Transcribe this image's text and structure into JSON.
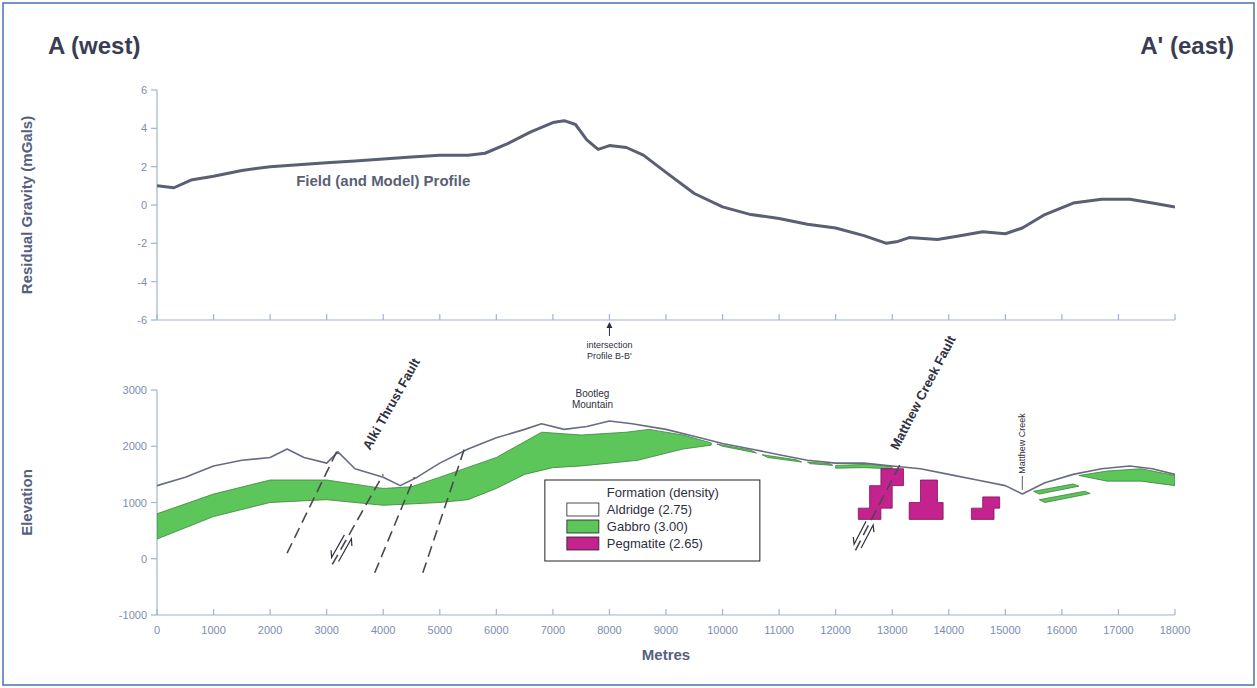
{
  "header": {
    "left": "A (west)",
    "right": "A' (east)"
  },
  "chart_data": [
    {
      "type": "line",
      "y_label": "Residual Gravity (mGals)",
      "xlim": [
        0,
        18000
      ],
      "ylim": [
        -6,
        6
      ],
      "xticks": [
        0,
        1000,
        2000,
        3000,
        4000,
        5000,
        6000,
        7000,
        8000,
        9000,
        10000,
        11000,
        12000,
        13000,
        14000,
        15000,
        16000,
        17000,
        18000
      ],
      "yticks": [
        -6,
        -4,
        -2,
        0,
        2,
        4,
        6
      ],
      "tick_labels": "y",
      "x": [
        0,
        300,
        600,
        1000,
        1500,
        2000,
        2500,
        3000,
        3500,
        4000,
        4500,
        5000,
        5500,
        5800,
        6200,
        6600,
        7000,
        7200,
        7400,
        7600,
        7800,
        8000,
        8300,
        8600,
        9000,
        9500,
        10000,
        10500,
        11000,
        11500,
        12000,
        12500,
        12900,
        13100,
        13300,
        13800,
        14200,
        14600,
        15000,
        15300,
        15700,
        16200,
        16700,
        17200,
        17600,
        18000
      ],
      "series": [
        {
          "name": "Field (and Model) Profile",
          "color": "#5b5f74",
          "values": [
            1.0,
            0.9,
            1.3,
            1.5,
            1.8,
            2.0,
            2.1,
            2.2,
            2.3,
            2.4,
            2.5,
            2.6,
            2.6,
            2.7,
            3.2,
            3.8,
            4.3,
            4.4,
            4.2,
            3.4,
            2.9,
            3.1,
            3.0,
            2.6,
            1.7,
            0.6,
            -0.1,
            -0.5,
            -0.7,
            -1.0,
            -1.2,
            -1.6,
            -2.0,
            -1.9,
            -1.7,
            -1.8,
            -1.6,
            -1.4,
            -1.5,
            -1.2,
            -0.5,
            0.1,
            0.3,
            0.3,
            0.1,
            -0.1
          ],
          "label_x": 4000,
          "label_y": 1.0
        }
      ],
      "annotations": [
        {
          "lines": [
            "intersection",
            "Profile B-B'"
          ],
          "x": 8000
        }
      ]
    },
    {
      "type": "cross_section",
      "x_label": "Metres",
      "y_label": "Elevation",
      "xlim": [
        0,
        18000
      ],
      "ylim": [
        -1000,
        3000
      ],
      "xticks": [
        0,
        1000,
        2000,
        3000,
        4000,
        5000,
        6000,
        7000,
        8000,
        9000,
        10000,
        11000,
        12000,
        13000,
        14000,
        15000,
        16000,
        17000,
        18000
      ],
      "yticks": [
        -1000,
        0,
        1000,
        2000,
        3000
      ],
      "topography": {
        "color": "#676c82",
        "x": [
          0,
          500,
          1000,
          1500,
          2000,
          2300,
          2600,
          3000,
          3200,
          3500,
          4000,
          4300,
          4600,
          5000,
          5500,
          6000,
          6500,
          6800,
          7200,
          7600,
          8000,
          8400,
          9000,
          9600,
          10000,
          10500,
          11000,
          11500,
          12000,
          12500,
          13000,
          13500,
          14000,
          14500,
          15000,
          15300,
          15700,
          16200,
          16700,
          17200,
          17600,
          18000
        ],
        "y": [
          1300,
          1450,
          1650,
          1750,
          1800,
          1950,
          1800,
          1700,
          1900,
          1600,
          1450,
          1300,
          1450,
          1700,
          1950,
          2150,
          2300,
          2400,
          2300,
          2350,
          2450,
          2400,
          2300,
          2150,
          2050,
          1950,
          1850,
          1750,
          1700,
          1700,
          1650,
          1600,
          1500,
          1400,
          1300,
          1150,
          1350,
          1500,
          1600,
          1650,
          1600,
          1500
        ]
      },
      "legend_title": "Formation (density)",
      "legend": "lower center",
      "formations": [
        {
          "label": "Aldridge (2.75)",
          "color": "#ffffff",
          "bodies": []
        },
        {
          "label": "Gabbro (3.00)",
          "color": "#5dc65b",
          "bodies": [
            {
              "x": [
                0,
                1000,
                2000,
                3000,
                4000,
                4500,
                5000,
                6000,
                6800,
                7500,
                8300,
                8700,
                9300,
                9800,
                9800,
                9300,
                8500,
                8000,
                7500,
                7000,
                6500,
                6000,
                5500,
                5000,
                4000,
                3000,
                2000,
                1000,
                0
              ],
              "y": [
                800,
                1150,
                1400,
                1400,
                1250,
                1280,
                1450,
                1800,
                2250,
                2200,
                2250,
                2300,
                2200,
                2060,
                2020,
                1950,
                1750,
                1700,
                1650,
                1620,
                1500,
                1250,
                1050,
                1000,
                950,
                1050,
                1000,
                750,
                350
              ]
            },
            {
              "x": [
                9900,
                10500,
                10600,
                10000
              ],
              "y": [
                2040,
                1930,
                1880,
                2000
              ]
            },
            {
              "x": [
                10700,
                11300,
                11400,
                10800
              ],
              "y": [
                1850,
                1760,
                1720,
                1800
              ]
            },
            {
              "x": [
                11500,
                11900,
                11950,
                11550
              ],
              "y": [
                1720,
                1690,
                1660,
                1690
              ]
            },
            {
              "x": [
                12000,
                12600,
                13000,
                13000,
                12500,
                12000
              ],
              "y": [
                1660,
                1680,
                1640,
                1600,
                1620,
                1610
              ]
            },
            {
              "x": [
                16300,
                16800,
                17400,
                18000,
                18000,
                17400,
                16800
              ],
              "y": [
                1480,
                1560,
                1600,
                1480,
                1300,
                1380,
                1380
              ]
            },
            {
              "x": [
                15500,
                16200,
                16300,
                15600
              ],
              "y": [
                1200,
                1330,
                1290,
                1150
              ]
            },
            {
              "x": [
                15600,
                16400,
                16500,
                15700
              ],
              "y": [
                1050,
                1200,
                1160,
                1000
              ]
            }
          ]
        },
        {
          "label": "Pegmatite (2.65)",
          "color": "#c4228e",
          "bodies": [
            {
              "x": [
                12400,
                12400,
                12600,
                12600,
                12800,
                12800,
                13200,
                13200,
                13000,
                13000,
                12800,
                12800
              ],
              "y": [
                700,
                900,
                900,
                1300,
                1300,
                1600,
                1600,
                1300,
                1300,
                900,
                900,
                700
              ]
            },
            {
              "x": [
                13300,
                13300,
                13500,
                13500,
                13800,
                13800,
                13900,
                13900
              ],
              "y": [
                700,
                1000,
                1000,
                1400,
                1400,
                1000,
                1000,
                700
              ]
            },
            {
              "x": [
                14400,
                14400,
                14600,
                14600,
                14900,
                14900,
                14800,
                14800
              ],
              "y": [
                700,
                900,
                900,
                1100,
                1100,
                900,
                900,
                700
              ]
            }
          ]
        }
      ],
      "faults": [
        {
          "name": "Alki Thrust Fault",
          "label_x": 4150,
          "label_y": 2750,
          "lines": [
            {
              "x": [
                2300,
                3200
              ],
              "y": [
                100,
                1950
              ]
            },
            {
              "x": [
                3100,
                4000
              ],
              "y": [
                -100,
                1500
              ]
            },
            {
              "x": [
                3850,
                4550
              ],
              "y": [
                -250,
                1450
              ]
            },
            {
              "x": [
                4700,
                5450
              ],
              "y": [
                -250,
                2000
              ]
            }
          ]
        },
        {
          "name": "Matthew Creek Fault",
          "label_x": 13550,
          "label_y": 2950,
          "lines": [
            {
              "x": [
                12350,
                13150
              ],
              "y": [
                150,
                1700
              ]
            }
          ]
        }
      ],
      "annotations": [
        {
          "text": "Bootleg Mountain",
          "x": 7700,
          "y": 2800
        },
        {
          "text": "Matthew Creek",
          "x": 15300,
          "y": 2050
        }
      ]
    }
  ]
}
